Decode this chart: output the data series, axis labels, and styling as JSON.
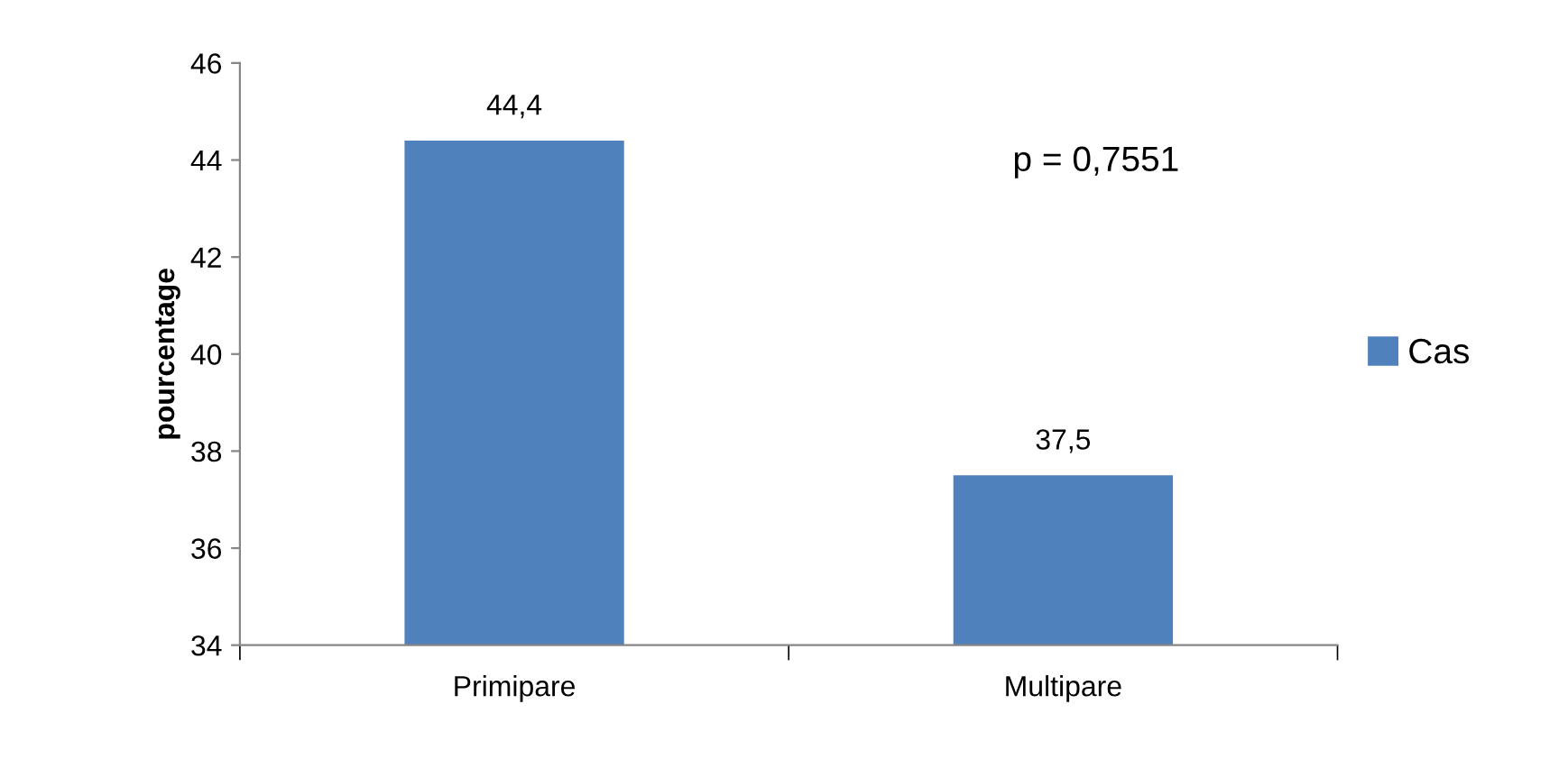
{
  "chart_data": {
    "type": "bar",
    "ylabel": "pourcentage",
    "categories": [
      "Primipare",
      "Multipare"
    ],
    "series": [
      {
        "name": "Cas",
        "color": "#4f81bd",
        "values": [
          44.4,
          37.5
        ],
        "value_labels": [
          "44,4",
          "37,5"
        ]
      }
    ],
    "ylim": [
      34,
      46
    ],
    "yticks": [
      34,
      36,
      38,
      40,
      42,
      44,
      46
    ],
    "grid": false,
    "legend": "right",
    "annotations": [
      "p = 0,7551"
    ]
  }
}
